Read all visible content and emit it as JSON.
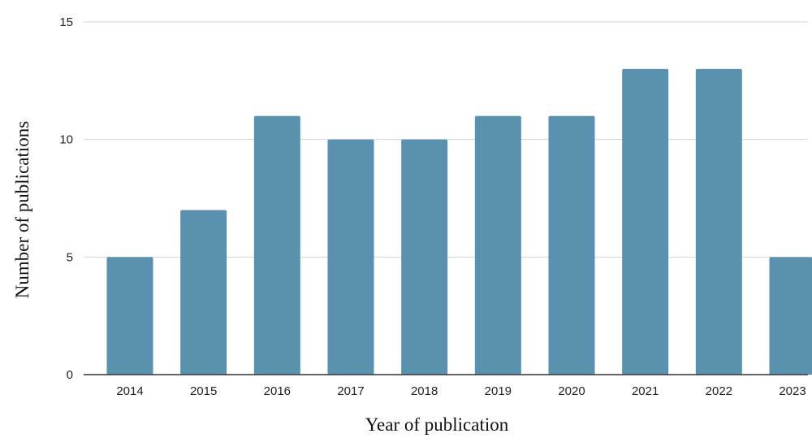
{
  "chart_data": {
    "type": "bar",
    "title": "",
    "xlabel": "Year of publication",
    "ylabel": "Number of publications",
    "categories": [
      "2014",
      "2015",
      "2016",
      "2017",
      "2018",
      "2019",
      "2020",
      "2021",
      "2022",
      "2023"
    ],
    "values": [
      5,
      7,
      11,
      10,
      10,
      11,
      11,
      13,
      13,
      5
    ],
    "ylim": [
      0,
      15
    ],
    "yticks": [
      "0",
      "5",
      "10",
      "15"
    ],
    "grid": true,
    "legend": "none",
    "bar_color": "#5a91af",
    "grid_color": "#d4d4d4",
    "axis_color": "#333333"
  }
}
